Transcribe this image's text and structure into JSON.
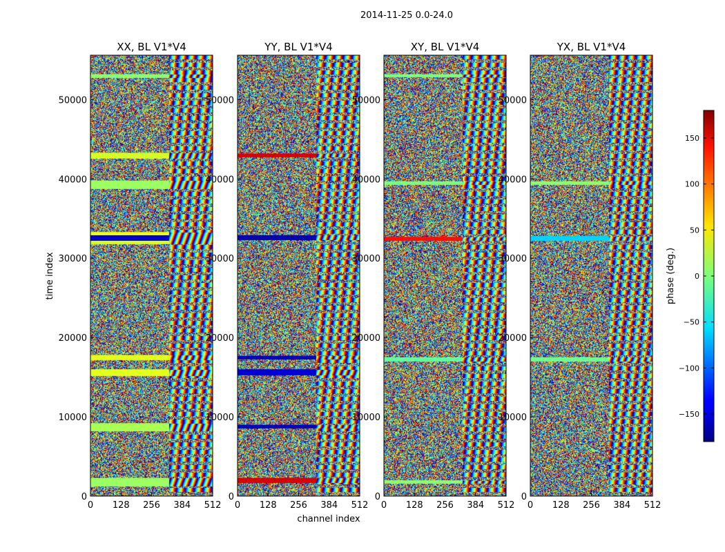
{
  "chart_data": {
    "type": "heatmap",
    "title": "2014-11-25 0.0-24.0",
    "xlabel": "channel index",
    "ylabel": "time index",
    "xlim": [
      0,
      512
    ],
    "ylim": [
      0,
      55600
    ],
    "xticks": [
      0,
      128,
      256,
      384,
      512
    ],
    "yticks": [
      0,
      10000,
      20000,
      30000,
      40000,
      50000
    ],
    "panels": [
      {
        "title": "XX, BL V1*V4",
        "bands": [
          {
            "y0": 1300,
            "y1": 2300,
            "value": 10
          },
          {
            "y0": 8200,
            "y1": 9200,
            "value": 15
          },
          {
            "y0": 15200,
            "y1": 16000,
            "value": 35
          },
          {
            "y0": 17200,
            "y1": 17800,
            "value": 35
          },
          {
            "y0": 31800,
            "y1": 32200,
            "value": 30
          },
          {
            "y0": 32200,
            "y1": 32900,
            "value": -155
          },
          {
            "y0": 32900,
            "y1": 33300,
            "value": 40
          },
          {
            "y0": 38800,
            "y1": 39800,
            "value": 10
          },
          {
            "y0": 42600,
            "y1": 43300,
            "value": 30
          },
          {
            "y0": 52800,
            "y1": 53200,
            "value": 5
          }
        ]
      },
      {
        "title": "YY, BL V1*V4",
        "bands": [
          {
            "y0": 1700,
            "y1": 2300,
            "value": 150
          },
          {
            "y0": 8600,
            "y1": 9000,
            "value": -160
          },
          {
            "y0": 15300,
            "y1": 16000,
            "value": -150
          },
          {
            "y0": 17300,
            "y1": 17700,
            "value": -160
          },
          {
            "y0": 32300,
            "y1": 32900,
            "value": -165
          },
          {
            "y0": 42800,
            "y1": 43200,
            "value": 150
          }
        ]
      },
      {
        "title": "XY, BL V1*V4",
        "bands": [
          {
            "y0": 1600,
            "y1": 2000,
            "value": 5
          },
          {
            "y0": 17000,
            "y1": 17500,
            "value": -10
          },
          {
            "y0": 32200,
            "y1": 32700,
            "value": 130
          },
          {
            "y0": 39300,
            "y1": 39700,
            "value": 0
          },
          {
            "y0": 52900,
            "y1": 53200,
            "value": 0
          }
        ]
      },
      {
        "title": "YX, BL V1*V4",
        "bands": [
          {
            "y0": 17000,
            "y1": 17500,
            "value": -5
          },
          {
            "y0": 32200,
            "y1": 32800,
            "value": -60
          },
          {
            "y0": 39300,
            "y1": 39700,
            "value": 5
          }
        ]
      }
    ],
    "colorbar": {
      "label": "phase (deg.)",
      "range": [
        -180,
        180
      ],
      "ticks": [
        150,
        100,
        50,
        0,
        -50,
        -100,
        -150
      ],
      "tick_labels": [
        "150",
        "100",
        "50",
        "0",
        "−50",
        "−100",
        "−150"
      ],
      "colormap": "jet"
    }
  }
}
